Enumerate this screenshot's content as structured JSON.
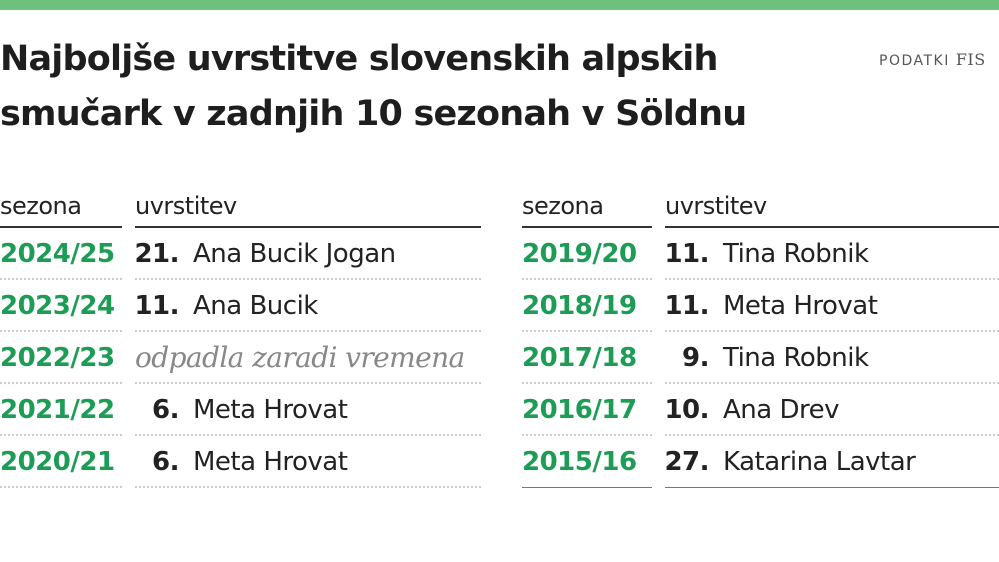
{
  "title_line1": "Najboljše uvrstitve slovenskih alpskih",
  "title_line2": "smučark v zadnjih 10 sezonah v Söldnu",
  "source_label": "PODATKI",
  "source_name": "FIS",
  "colors": {
    "accent_bar": "#6cc17f",
    "season": "#1d9c55"
  },
  "headers": {
    "season": "sezona",
    "placement": "uvrstitev"
  },
  "left_table": [
    {
      "season": "2024/25",
      "rank": "21.",
      "name": "Ana Bucik Jogan"
    },
    {
      "season": "2023/24",
      "rank": "11.",
      "name": "Ana Bucik"
    },
    {
      "season": "2022/23",
      "note": "odpadla zaradi vremena"
    },
    {
      "season": "2021/22",
      "rank": "6.",
      "name": "Meta Hrovat"
    },
    {
      "season": "2020/21",
      "rank": "6.",
      "name": "Meta Hrovat"
    }
  ],
  "right_table": [
    {
      "season": "2019/20",
      "rank": "11.",
      "name": "Tina Robnik"
    },
    {
      "season": "2018/19",
      "rank": "11.",
      "name": "Meta Hrovat"
    },
    {
      "season": "2017/18",
      "rank": "9.",
      "name": "Tina Robnik"
    },
    {
      "season": "2016/17",
      "rank": "10.",
      "name": "Ana Drev"
    },
    {
      "season": "2015/16",
      "rank": "27.",
      "name": "Katarina Lavtar"
    }
  ]
}
